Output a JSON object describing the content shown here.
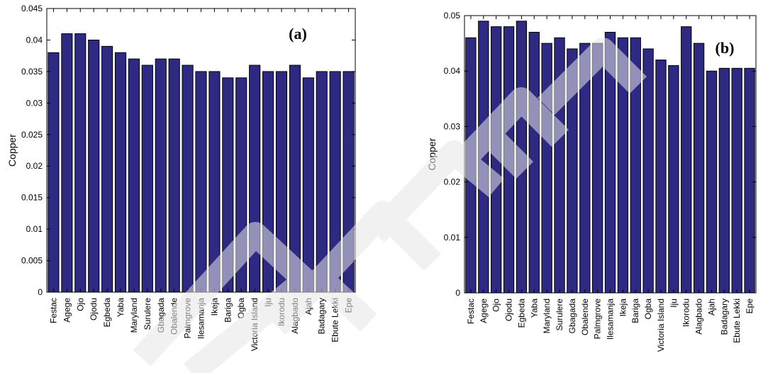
{
  "chart_data": [
    {
      "type": "bar",
      "panel_label": "(a)",
      "xlabel": "",
      "ylabel": "Copper",
      "ylim": [
        0,
        0.045
      ],
      "yticks": [
        0,
        0.005,
        0.01,
        0.015,
        0.02,
        0.025,
        0.03,
        0.035,
        0.04,
        0.045
      ],
      "ytick_labels": [
        "0",
        "0.005",
        "0.01",
        "0.015",
        "0.02",
        "0.025",
        "0.03",
        "0.035",
        "0.04",
        "0.045"
      ],
      "grid": false,
      "categories": [
        "Festac",
        "Agege",
        "Ojo",
        "Ojodu",
        "Egbeda",
        "Yaba",
        "Maryland",
        "Surulere",
        "Gbagada",
        "Obalende",
        "Palmgrove",
        "Ilesamanja",
        "Ikeja",
        "Bariga",
        "Ogba",
        "Victoria Island",
        "Iju",
        "Ikorodu",
        "Alagbado",
        "Ajah",
        "Badagary",
        "Ebute Lekki",
        "Epe"
      ],
      "values": [
        0.038,
        0.041,
        0.041,
        0.04,
        0.039,
        0.038,
        0.037,
        0.036,
        0.037,
        0.037,
        0.036,
        0.035,
        0.035,
        0.034,
        0.034,
        0.036,
        0.035,
        0.035,
        0.036,
        0.034,
        0.035,
        0.035,
        0.035
      ],
      "bar_color": "#2e2a84"
    },
    {
      "type": "bar",
      "panel_label": "(b)",
      "xlabel": "",
      "ylabel": "Copper",
      "ylim": [
        0,
        0.05
      ],
      "yticks": [
        0,
        0.01,
        0.02,
        0.03,
        0.04,
        0.05
      ],
      "ytick_labels": [
        "0",
        "0.01",
        "0.02",
        "0.03",
        "0.04",
        "0.05"
      ],
      "grid": false,
      "categories": [
        "Festac",
        "Agege",
        "Ojo",
        "Ojodu",
        "Egbeda",
        "Yaba",
        "Maryland",
        "Surulere",
        "Gbagada",
        "Obalende",
        "Palmgrove",
        "Ilesamanja",
        "Ikeja",
        "Bariga",
        "Ogba",
        "Victoria Island",
        "Iju",
        "Ikorodu",
        "Alagbado",
        "Ajah",
        "Badagary",
        "Ebute Lekki",
        "Epe"
      ],
      "values": [
        0.046,
        0.049,
        0.048,
        0.048,
        0.049,
        0.047,
        0.045,
        0.046,
        0.044,
        0.045,
        0.045,
        0.047,
        0.046,
        0.046,
        0.044,
        0.042,
        0.041,
        0.048,
        0.045,
        0.04,
        0.0405,
        0.0405,
        0.0405
      ],
      "bar_color": "#2e2a84"
    }
  ]
}
